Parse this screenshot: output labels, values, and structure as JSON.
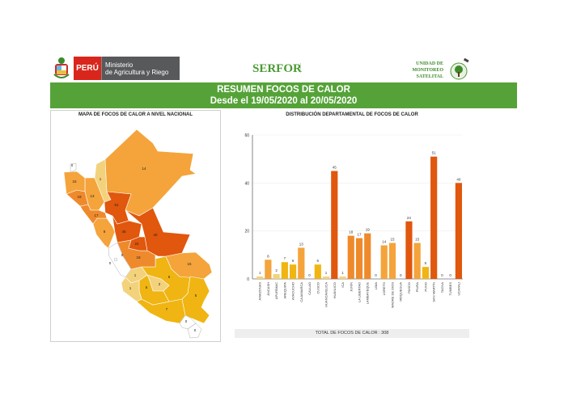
{
  "header": {
    "country": "PERÚ",
    "ministry_line1": "Ministerio",
    "ministry_line2": "de Agricultura y Riego",
    "serfor": "SERFOR",
    "unit_line1": "UNIDAD DE",
    "unit_line2": "MONITOREO",
    "unit_line3": "SATELITAL"
  },
  "banner": {
    "title": "RESUMEN FOCOS DE CALOR",
    "subtitle": "Desde el 19/05/2020 al 20/05/2020"
  },
  "map": {
    "title": "MAPA DE FOCOS DE CALOR A NIVEL NACIONAL"
  },
  "colors": {
    "very_low": "#f3d27c",
    "low": "#f0b513",
    "medium": "#f4a43a",
    "high": "#ef8a2c",
    "very_high": "#e0570d",
    "banner": "#55a338"
  },
  "chart_data": {
    "type": "bar",
    "title": "DISTRIBUCIÓN DEPARTAMENTAL DE FOCOS DE CALOR",
    "xlabel": "",
    "ylabel": "",
    "ylim": [
      0,
      60
    ],
    "yticks": [
      0,
      20,
      40,
      60
    ],
    "grid": true,
    "categories": [
      "AMAZONAS",
      "ÁNCASH",
      "APURÍMAC",
      "AREQUIPA",
      "AYACUCHO",
      "CAJAMARCA",
      "CALLAO",
      "CUSCO",
      "HUANCAVELICA",
      "HUÁNUCO",
      "ICA",
      "JUNÍN",
      "LA LIBERTAD",
      "LAMBAYEQUE",
      "LIMA",
      "LORETO",
      "MADRE DE DIOS",
      "MOQUEGUA",
      "PASCO",
      "PIURA",
      "PUNO",
      "SAN MARTÍN",
      "TACNA",
      "TUMBES",
      "UCAYALI"
    ],
    "values": [
      1,
      8,
      2,
      7,
      6,
      13,
      0,
      6,
      1,
      45,
      1,
      18,
      17,
      19,
      0,
      14,
      15,
      0,
      24,
      15,
      5,
      51,
      0,
      0,
      40
    ],
    "footer": "TOTAL DE FOCOS DE CALOR : 308"
  }
}
